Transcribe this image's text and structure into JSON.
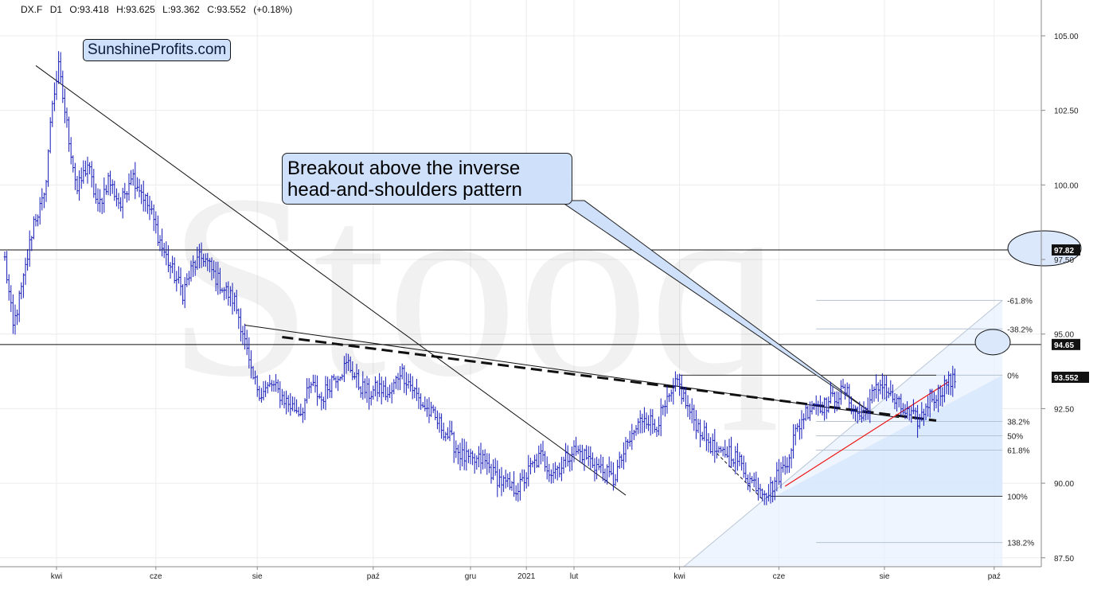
{
  "header": {
    "symbol": "DX.F",
    "timeframe": "D1",
    "open": "O:93.418",
    "high": "H:93.625",
    "low": "L:93.362",
    "close": "C:93.552",
    "change": "(+0.18%)"
  },
  "watermark": "Stooq",
  "logo_text": "SunshineProfits.com",
  "annotation": {
    "line1": "Breakout above the inverse",
    "line2": "head-and-shoulders pattern"
  },
  "chart_data": {
    "type": "candlestick",
    "ylim": [
      87.2,
      106.2
    ],
    "y_ticks": [
      {
        "value": 105.0,
        "label": "105.00"
      },
      {
        "value": 102.5,
        "label": "102.50"
      },
      {
        "value": 100.0,
        "label": "100.00"
      },
      {
        "value": 97.5,
        "label": "97.50"
      },
      {
        "value": 95.0,
        "label": "95.00"
      },
      {
        "value": 92.5,
        "label": "92.50"
      },
      {
        "value": 90.0,
        "label": "90.00"
      },
      {
        "value": 87.5,
        "label": "87.50"
      }
    ],
    "x_labels": [
      "kwi",
      "cze",
      "sie",
      "paź",
      "gru",
      "2021",
      "lut",
      "kwi",
      "cze",
      "sie",
      "paź"
    ],
    "price_markers": [
      {
        "value": 97.82,
        "label": "97.82"
      },
      {
        "value": 94.65,
        "label": "94.65"
      },
      {
        "value": 93.552,
        "label": "93.552"
      }
    ],
    "fibonacci": {
      "high": 93.62,
      "low": 89.56,
      "levels": [
        {
          "ratio": -0.618,
          "label": "-61.8%"
        },
        {
          "ratio": -0.382,
          "label": "-38.2%"
        },
        {
          "ratio": 0.0,
          "label": "0%"
        },
        {
          "ratio": 0.382,
          "label": "38.2%"
        },
        {
          "ratio": 0.5,
          "label": "50%"
        },
        {
          "ratio": 0.618,
          "label": "61.8%"
        },
        {
          "ratio": 1.0,
          "label": "100%"
        },
        {
          "ratio": 1.382,
          "label": "138.2%"
        }
      ]
    },
    "anchors": [
      [
        0,
        97.5
      ],
      [
        4,
        95.2
      ],
      [
        9,
        96.8
      ],
      [
        14,
        98.8
      ],
      [
        19,
        99.5
      ],
      [
        23,
        102.8
      ],
      [
        26,
        103.9
      ],
      [
        30,
        102.0
      ],
      [
        35,
        99.8
      ],
      [
        40,
        100.7
      ],
      [
        45,
        99.2
      ],
      [
        50,
        100.2
      ],
      [
        56,
        99.3
      ],
      [
        61,
        100.4
      ],
      [
        66,
        99.8
      ],
      [
        71,
        99.0
      ],
      [
        76,
        97.9
      ],
      [
        81,
        97.1
      ],
      [
        86,
        96.4
      ],
      [
        91,
        97.3
      ],
      [
        96,
        97.6
      ],
      [
        101,
        97.0
      ],
      [
        106,
        96.5
      ],
      [
        111,
        96.1
      ],
      [
        115,
        95.1
      ],
      [
        119,
        93.6
      ],
      [
        124,
        93.0
      ],
      [
        129,
        93.3
      ],
      [
        134,
        92.9
      ],
      [
        138,
        92.6
      ],
      [
        143,
        92.4
      ],
      [
        148,
        93.3
      ],
      [
        153,
        92.8
      ],
      [
        158,
        93.5
      ],
      [
        163,
        93.8
      ],
      [
        166,
        94.0
      ],
      [
        171,
        93.3
      ],
      [
        176,
        93.0
      ],
      [
        181,
        93.2
      ],
      [
        186,
        92.9
      ],
      [
        191,
        93.8
      ],
      [
        196,
        93.3
      ],
      [
        201,
        92.7
      ],
      [
        206,
        92.3
      ],
      [
        211,
        91.9
      ],
      [
        216,
        91.4
      ],
      [
        221,
        90.9
      ],
      [
        226,
        90.7
      ],
      [
        231,
        90.8
      ],
      [
        236,
        90.3
      ],
      [
        241,
        90.0
      ],
      [
        245,
        89.8
      ],
      [
        249,
        89.9
      ],
      [
        254,
        90.5
      ],
      [
        259,
        90.9
      ],
      [
        264,
        90.4
      ],
      [
        269,
        90.6
      ],
      [
        274,
        91.1
      ],
      [
        279,
        91.0
      ],
      [
        284,
        90.7
      ],
      [
        289,
        90.4
      ],
      [
        294,
        90.1
      ],
      [
        299,
        91.0
      ],
      [
        304,
        91.7
      ],
      [
        309,
        92.3
      ],
      [
        314,
        91.9
      ],
      [
        318,
        92.4
      ],
      [
        322,
        92.9
      ],
      [
        325,
        93.4
      ],
      [
        330,
        92.5
      ],
      [
        335,
        91.9
      ],
      [
        340,
        91.4
      ],
      [
        345,
        90.9
      ],
      [
        350,
        91.1
      ],
      [
        355,
        90.7
      ],
      [
        360,
        90.1
      ],
      [
        365,
        89.9
      ],
      [
        369,
        89.7
      ],
      [
        373,
        90.2
      ],
      [
        377,
        90.6
      ],
      [
        381,
        91.5
      ],
      [
        386,
        92.3
      ],
      [
        391,
        92.7
      ],
      [
        396,
        92.6
      ],
      [
        401,
        92.9
      ],
      [
        406,
        93.1
      ],
      [
        410,
        92.5
      ],
      [
        414,
        92.2
      ],
      [
        419,
        92.9
      ],
      [
        424,
        93.4
      ],
      [
        428,
        92.9
      ],
      [
        433,
        92.5
      ],
      [
        438,
        92.2
      ],
      [
        442,
        92.1
      ],
      [
        447,
        92.9
      ],
      [
        451,
        93.0
      ],
      [
        455,
        93.4
      ],
      [
        459,
        93.4
      ]
    ],
    "x_range": [
      0,
      470
    ],
    "x_positions": {
      "kwi": 25,
      "cze": 73,
      "sie": 122,
      "paź": 178,
      "gru": 225,
      "2021": 252,
      "lut": 275,
      "kwi2": 326,
      "cze2": 374,
      "sie2": 425,
      "paź2": 478
    }
  }
}
